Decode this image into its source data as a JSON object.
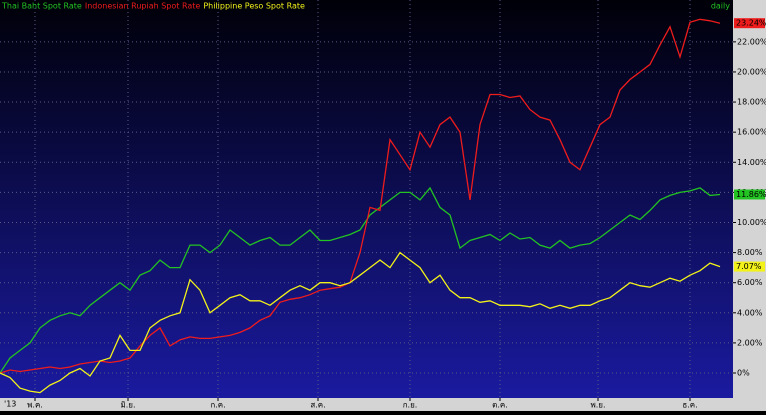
{
  "chart_data": {
    "type": "line",
    "timeframe": "daily",
    "start_label": "'13",
    "x": [
      0,
      1,
      2,
      3,
      4,
      5,
      6,
      7,
      8,
      9,
      10,
      11,
      12,
      13,
      14,
      15,
      16,
      17,
      18,
      19,
      20,
      21,
      22,
      23,
      24,
      25,
      26,
      27,
      28,
      29,
      30,
      31,
      32,
      33,
      34,
      35,
      36,
      37,
      38,
      39,
      40,
      41,
      42,
      43,
      44,
      45,
      46,
      47,
      48,
      49,
      50,
      51,
      52,
      53,
      54,
      55,
      56,
      57,
      58,
      59,
      60,
      61,
      62,
      63,
      64,
      65,
      66,
      67,
      68,
      69,
      70,
      71,
      72
    ],
    "xlim": [
      0,
      73.3
    ],
    "xticks": [
      {
        "value": 3.5,
        "label": "พ.ค."
      },
      {
        "value": 12.8,
        "label": "มิ.ย."
      },
      {
        "value": 21.8,
        "label": "ก.ค."
      },
      {
        "value": 31.8,
        "label": "ส.ค."
      },
      {
        "value": 41,
        "label": "ก.ย."
      },
      {
        "value": 50,
        "label": "ต.ค."
      },
      {
        "value": 59.8,
        "label": "พ.ย."
      },
      {
        "value": 69,
        "label": "ธ.ค."
      }
    ],
    "ylim": [
      -1.66,
      24.78
    ],
    "yticks": [
      {
        "value": 0,
        "label": "0%"
      },
      {
        "value": 2,
        "label": "2.00%"
      },
      {
        "value": 4,
        "label": "4.00%"
      },
      {
        "value": 6,
        "label": "6.00%"
      },
      {
        "value": 8,
        "label": "8.00%"
      },
      {
        "value": 10,
        "label": "10.00%"
      },
      {
        "value": 12,
        "label": "12.00%"
      },
      {
        "value": 14,
        "label": "14.00%"
      },
      {
        "value": 16,
        "label": "16.00%"
      },
      {
        "value": 18,
        "label": "18.00%"
      },
      {
        "value": 20,
        "label": "20.00%"
      },
      {
        "value": 22,
        "label": "22.00%"
      }
    ],
    "grid": true,
    "series": [
      {
        "name": "Thai Baht Spot Rate",
        "color": "#22c322",
        "last": {
          "value": 11.86,
          "label": "11.86%"
        },
        "values": [
          0,
          1.0,
          1.5,
          2.0,
          3.0,
          3.5,
          3.8,
          4.0,
          3.8,
          4.5,
          5.0,
          5.5,
          6.0,
          5.5,
          6.5,
          6.8,
          7.5,
          7.0,
          7.0,
          8.5,
          8.5,
          8.0,
          8.5,
          9.5,
          9.0,
          8.5,
          8.8,
          9.0,
          8.5,
          8.5,
          9.0,
          9.5,
          8.8,
          8.8,
          9.0,
          9.2,
          9.5,
          10.5,
          11.0,
          11.5,
          12,
          12,
          11.5,
          12.3,
          11.0,
          10.5,
          8.3,
          8.8,
          9.0,
          9.2,
          8.8,
          9.3,
          8.9,
          9.0,
          8.5,
          8.3,
          8.8,
          8.3,
          8.5,
          8.6,
          9.0,
          9.5,
          10.0,
          10.5,
          10.2,
          10.8,
          11.5,
          11.8,
          12.0,
          12.1,
          12.3,
          11.8,
          11.86
        ]
      },
      {
        "name": "Indonesian Rupiah Spot Rate",
        "color": "#ee1c1c",
        "last": {
          "value": 23.24,
          "label": "23.24%"
        },
        "values": [
          0,
          0.2,
          0.1,
          0.2,
          0.3,
          0.4,
          0.3,
          0.4,
          0.6,
          0.7,
          0.8,
          0.7,
          0.8,
          1.0,
          1.8,
          2.5,
          3.0,
          1.8,
          2.2,
          2.4,
          2.3,
          2.3,
          2.4,
          2.5,
          2.7,
          3.0,
          3.5,
          3.8,
          4.7,
          4.9,
          5.0,
          5.2,
          5.5,
          5.6,
          5.7,
          6.0,
          8.0,
          11,
          10.8,
          15.5,
          14.5,
          13.5,
          16,
          15,
          16.5,
          17,
          16,
          11.5,
          16.5,
          18.5,
          18.5,
          18.3,
          18.4,
          17.5,
          17.0,
          16.8,
          15.5,
          14,
          13.5,
          15,
          16.5,
          17,
          18.8,
          19.5,
          20.0,
          20.5,
          21.8,
          23.0,
          21.0,
          23.3,
          23.5,
          23.4,
          23.24
        ]
      },
      {
        "name": "Philippine Peso Spot Rate",
        "color": "#f2f21a",
        "last": {
          "value": 7.07,
          "label": "7.07%"
        },
        "values": [
          0,
          -0.3,
          -1.0,
          -1.2,
          -1.3,
          -0.8,
          -0.5,
          0,
          0.3,
          -0.2,
          0.8,
          1.0,
          2.5,
          1.5,
          1.5,
          3.0,
          3.5,
          3.8,
          4.0,
          6.2,
          5.5,
          4.0,
          4.5,
          5.0,
          5.2,
          4.8,
          4.8,
          4.5,
          5.0,
          5.5,
          5.8,
          5.5,
          6.0,
          6.0,
          5.8,
          6.0,
          6.5,
          7.0,
          7.5,
          7.0,
          8.0,
          7.5,
          7.0,
          6.0,
          6.5,
          5.5,
          5.0,
          5.0,
          4.7,
          4.8,
          4.5,
          4.5,
          4.5,
          4.4,
          4.6,
          4.3,
          4.5,
          4.3,
          4.5,
          4.5,
          4.8,
          5.0,
          5.5,
          6.0,
          5.8,
          5.7,
          6.0,
          6.3,
          6.1,
          6.5,
          6.8,
          7.3,
          7.07
        ]
      }
    ]
  }
}
